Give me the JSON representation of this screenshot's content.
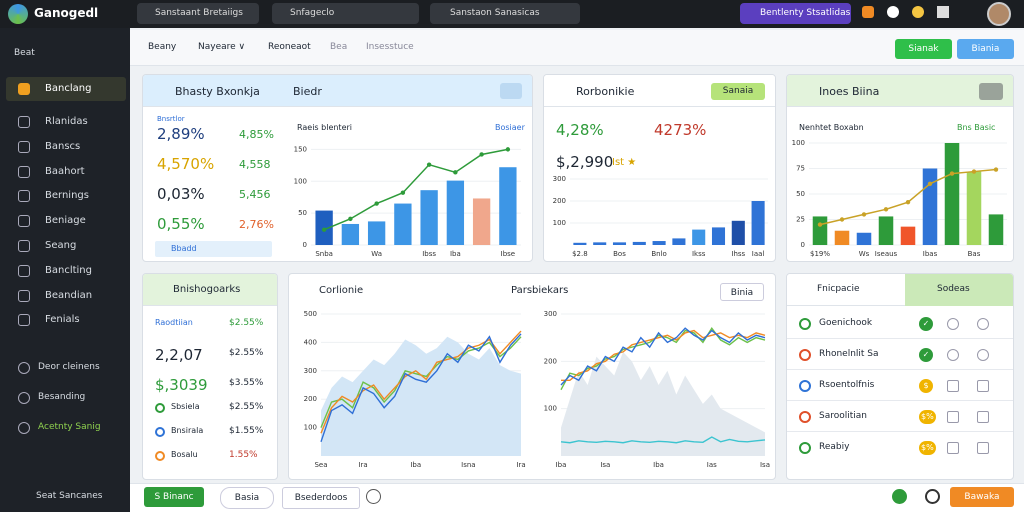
{
  "topbar": {
    "brand": "Ganogedl",
    "search": "Sanstaant Bretaiigs",
    "filter": "Snfageclo",
    "select": "Sanstaon Sanasicas",
    "action": "Bentlenty Stsatlidas"
  },
  "sidebar": {
    "back": "Beat",
    "items": [
      "Banclang",
      "Rlanidas",
      "Banscs",
      "Baahort",
      "Bernings",
      "Beniage",
      "Seang",
      "Banclting",
      "Beandian",
      "Fenials"
    ],
    "secondary": [
      "Deor cleinens",
      "Besanding",
      "Acetnty Sanig"
    ],
    "footer": "Seat Sancanes"
  },
  "tabs": [
    "Beany",
    "Nayeare ∨",
    "Reoneaot",
    "Bea",
    "Insesstuce"
  ],
  "toolbar": {
    "primary": "Sianak",
    "secondary": "Biania"
  },
  "overview": {
    "title": "Bhasty Bxonkja",
    "subtitle": "Biedr",
    "stats_label": "Bnsrtlor",
    "stats": [
      [
        "2,89%",
        "4,85%"
      ],
      [
        "4,570%",
        "4,558"
      ],
      [
        "0,03%",
        "5,456"
      ],
      [
        "0,55%",
        "2,76%"
      ]
    ],
    "stats_button": "Bbadd",
    "chart": {
      "type": "bar",
      "legend": "Raeis blenteri",
      "legend_right": "Bosiaer",
      "categories": [
        "Snba",
        null,
        "Wa",
        null,
        "Ibss",
        "Iba",
        null,
        "Ibse"
      ],
      "values": [
        54,
        33,
        37,
        65,
        86,
        101,
        73,
        122
      ],
      "colors": [
        "#1f5fbf",
        "#3d96e6",
        "#3d96e6",
        "#3d96e6",
        "#3d96e6",
        "#3d96e6",
        "#f0a78c",
        "#3d96e6"
      ],
      "line": {
        "color": "#2e9b3a",
        "values": [
          24,
          41,
          65,
          82,
          126,
          114,
          142,
          150
        ]
      },
      "ylim": [
        0,
        160
      ],
      "yticks": [
        0,
        50,
        100,
        150
      ],
      "grid": true
    }
  },
  "performance": {
    "title": "Rorbonikie",
    "button": "Sanaia",
    "stats": [
      "4,28%",
      "4273%",
      "$,2,990",
      "Ist ★"
    ],
    "chart": {
      "type": "bar",
      "categories": [
        "$2.8",
        null,
        "Bos",
        null,
        "Bnlo",
        null,
        "Ikss",
        null,
        "Ihss",
        "Iaal"
      ],
      "values": [
        10,
        12,
        12,
        14,
        18,
        30,
        70,
        80,
        110,
        200
      ],
      "colors": [
        "#2f73d6",
        "#2f73d6",
        "#2f73d6",
        "#2f73d6",
        "#2f73d6",
        "#2f73d6",
        "#3d96e6",
        "#2f73d6",
        "#1f4fa8",
        "#2f73d6"
      ],
      "ylim": [
        0,
        300
      ],
      "yticks": [
        100,
        200,
        300
      ],
      "grid": true
    }
  },
  "insights": {
    "title": "Inoes Biina",
    "legend": "Nenhtet Boxabn",
    "legend_right": "Bns Basic",
    "chart": {
      "type": "bar",
      "categories": [
        "$19%",
        null,
        "Ws",
        "Iseaus",
        null,
        "Ibas",
        null,
        "Bas",
        null
      ],
      "values": [
        28,
        14,
        12,
        28,
        18,
        75,
        100,
        72,
        30
      ],
      "colors": [
        "#2e9b3a",
        "#f08a24",
        "#2f73d6",
        "#2e9b3a",
        "#f0552a",
        "#2f73d6",
        "#2e9b3a",
        "#a4d65e",
        "#2e9b3a"
      ],
      "line": {
        "color": "#c9a227",
        "values": [
          20,
          25,
          30,
          35,
          42,
          60,
          70,
          72,
          74
        ]
      },
      "ylim": [
        0,
        100
      ],
      "yticks": [
        0,
        25,
        50,
        75,
        100
      ],
      "grid": true
    }
  },
  "benchmarks": {
    "title": "Bnishogoarks",
    "rows": [
      [
        "Raodtiian",
        "$2.55%"
      ],
      [
        "2,2,07",
        "$2.55%"
      ],
      [
        "$,3039",
        "$3.55%"
      ],
      [
        "Sbsiela",
        "$2.55%"
      ],
      [
        "Bnsirala",
        "$1.55%"
      ],
      [
        "Bosalu",
        "1.55%"
      ]
    ]
  },
  "trends": {
    "title": "Corlionie",
    "subtitle": "Parsbiekars",
    "button": "Binia",
    "charts": [
      {
        "type": "line",
        "ylim": [
          0,
          500
        ],
        "yticks": [
          100,
          200,
          300,
          400,
          500
        ],
        "grid": true,
        "categories": [
          "Sea",
          null,
          null,
          null,
          "Ira",
          null,
          null,
          null,
          null,
          "Iba",
          null,
          null,
          null,
          null,
          "Isna",
          null,
          null,
          null,
          null,
          "Ira"
        ],
        "area": {
          "color": "#d3e6f6",
          "values": [
            160,
            240,
            280,
            260,
            300,
            340,
            320,
            360,
            410,
            390,
            360,
            380,
            420,
            400,
            360,
            340,
            380,
            320,
            300,
            290
          ]
        },
        "series": [
          {
            "color": "#6cc04a",
            "values": [
              100,
              190,
              200,
              170,
              260,
              240,
              190,
              230,
              300,
              290,
              280,
              320,
              350,
              340,
              370,
              380,
              400,
              350,
              380,
              420
            ]
          },
          {
            "color": "#f08a24",
            "values": [
              80,
              170,
              210,
              190,
              230,
              250,
              200,
              240,
              280,
              300,
              270,
              330,
              340,
              350,
              380,
              390,
              410,
              360,
              400,
              440
            ]
          },
          {
            "color": "#2f6fd6",
            "values": [
              50,
              160,
              180,
              150,
              240,
              220,
              170,
              210,
              290,
              270,
              260,
              300,
              360,
              330,
              390,
              370,
              420,
              330,
              390,
              430
            ]
          }
        ]
      },
      {
        "type": "line",
        "ylim": [
          0,
          300
        ],
        "yticks": [
          100,
          200,
          300
        ],
        "grid": true,
        "categories": [
          "Iba",
          null,
          null,
          null,
          null,
          "Isa",
          null,
          null,
          null,
          null,
          null,
          "Iba",
          null,
          null,
          null,
          null,
          null,
          "Ias",
          null,
          null,
          null,
          null,
          null,
          "Isa"
        ],
        "area": {
          "color": "#e3e9ef",
          "values": [
            60,
            120,
            180,
            150,
            210,
            190,
            170,
            220,
            200,
            160,
            190,
            150,
            180,
            130,
            170,
            140,
            110,
            130,
            100,
            90,
            80,
            70,
            60,
            50
          ]
        },
        "series": [
          {
            "color": "#6cc04a",
            "values": [
              140,
              175,
              170,
              185,
              190,
              205,
              210,
              225,
              230,
              235,
              240,
              255,
              250,
              240,
              265,
              260,
              240,
              270,
              245,
              235,
              250,
              240,
              250,
              245
            ]
          },
          {
            "color": "#f08a24",
            "values": [
              160,
              160,
              175,
              180,
              195,
              200,
              215,
              220,
              235,
              240,
              245,
              250,
              255,
              245,
              260,
              265,
              250,
              255,
              260,
              250,
              255,
              250,
              260,
              255
            ]
          },
          {
            "color": "#2f6fd6",
            "values": [
              150,
              170,
              160,
              190,
              180,
              210,
              200,
              230,
              220,
              250,
              230,
              260,
              240,
              250,
              270,
              255,
              245,
              265,
              250,
              240,
              260,
              245,
              255,
              250
            ]
          },
          {
            "color": "#3cc4d0",
            "values": [
              30,
              28,
              32,
              30,
              29,
              31,
              30,
              28,
              32,
              30,
              29,
              31,
              30,
              28,
              32,
              30,
              29,
              40,
              30,
              35,
              31,
              30,
              32,
              34
            ]
          }
        ]
      }
    ]
  },
  "watchlist": {
    "tab": "Fnicpacie",
    "tab_active": "Sodeas",
    "rows": [
      [
        "Goenichook",
        "✓"
      ],
      [
        "Rhonelnlit Sa",
        "✓"
      ],
      [
        "Rsoentolfnis",
        "$"
      ],
      [
        "Saroolitian",
        "$%"
      ],
      [
        "Reabiy",
        "$%"
      ]
    ]
  },
  "footer": {
    "primary": "S Binanc",
    "pill": "Basia",
    "select": "Bsederdoos",
    "action": "Bawaka"
  }
}
